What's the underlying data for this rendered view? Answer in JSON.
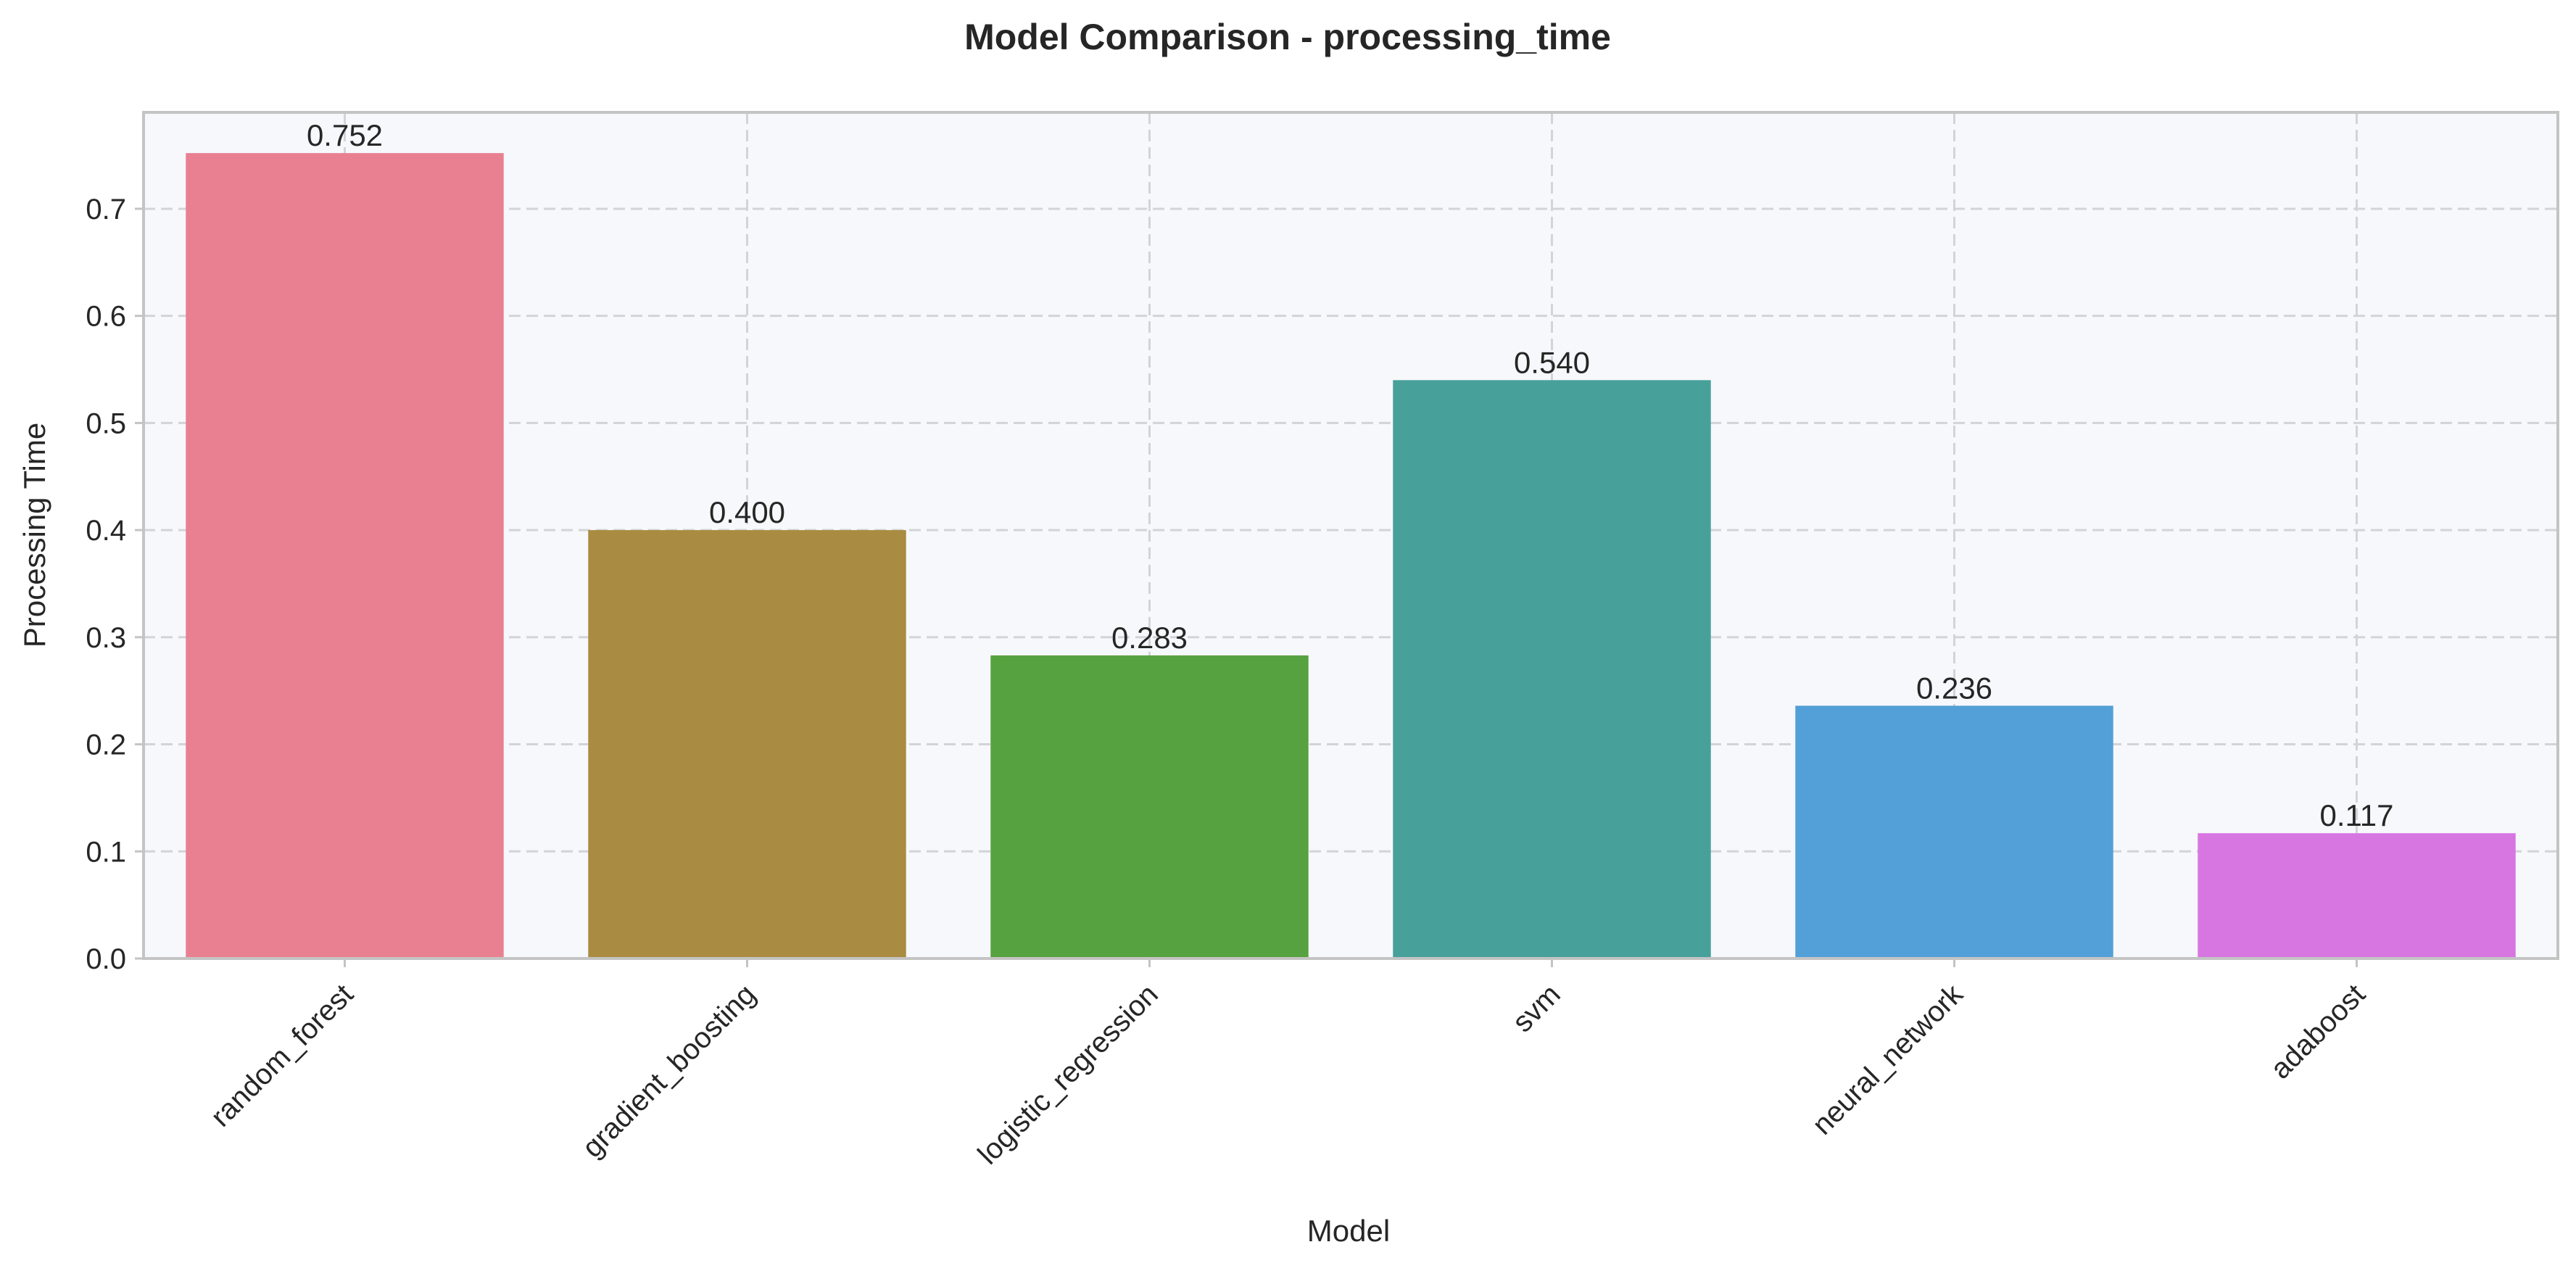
{
  "chart_data": {
    "type": "bar",
    "title": "Model Comparison - processing_time",
    "xlabel": "Model",
    "ylabel": "Processing Time",
    "categories": [
      "random_forest",
      "gradient_boosting",
      "logistic_regression",
      "svm",
      "neural_network",
      "adaboost"
    ],
    "values": [
      0.752,
      0.4,
      0.283,
      0.54,
      0.236,
      0.117
    ],
    "value_labels": [
      "0.752",
      "0.400",
      "0.283",
      "0.540",
      "0.236",
      "0.117"
    ],
    "colors": [
      "#e88092",
      "#a98c41",
      "#57a240",
      "#47a09a",
      "#539fd7",
      "#d876e1"
    ],
    "ylim": [
      0,
      0.79
    ],
    "yticks": [
      0.0,
      0.1,
      0.2,
      0.3,
      0.4,
      0.5,
      0.6,
      0.7
    ],
    "ytick_labels": [
      "0.0",
      "0.1",
      "0.2",
      "0.3",
      "0.4",
      "0.5",
      "0.6",
      "0.7"
    ],
    "grid": true,
    "legend": "none",
    "plot_background": "#f7f8fb"
  }
}
